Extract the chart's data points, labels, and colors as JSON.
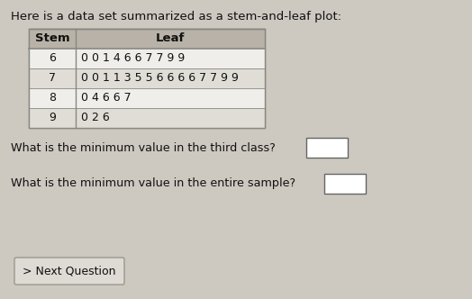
{
  "title": "Here is a data set summarized as a stem-and-leaf plot:",
  "title_fontsize": 9.5,
  "table_header": [
    "Stem",
    "Leaf"
  ],
  "table_rows": [
    [
      "6",
      "0 0 1 4 6 6 7 7 9 9"
    ],
    [
      "7",
      "0 0 1 1 3 5 5 6 6 6 6 7 7 9 9"
    ],
    [
      "8",
      "0 4 6 6 7"
    ],
    [
      "9",
      "0 2 6"
    ]
  ],
  "question1": "What is the minimum value in the third class?",
  "question2": "What is the minimum value in the entire sample?",
  "button_text": "> Next Question",
  "bg_color": "#cdc8c0",
  "table_bg_even": "#f0eeea",
  "table_bg_odd": "#e0ddd6",
  "table_header_bg": "#b8b2a8",
  "table_border_color": "#888880",
  "text_color": "#111111",
  "button_bg": "#dedad4",
  "button_border": "#999990",
  "font_size_table": 9.0,
  "font_size_question": 9.2,
  "font_size_button": 9.0
}
